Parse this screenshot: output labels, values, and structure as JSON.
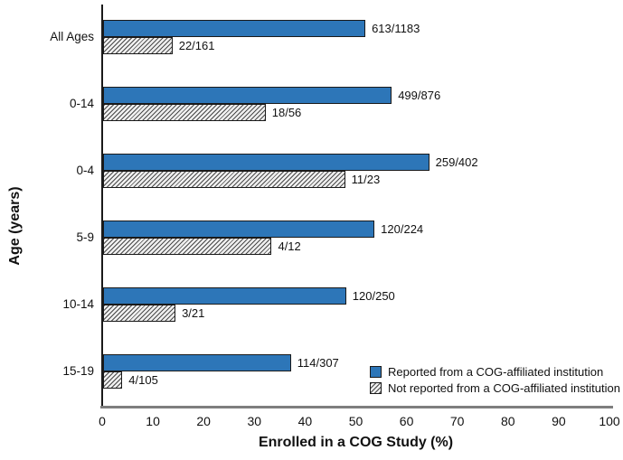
{
  "chart_data": {
    "type": "bar",
    "orientation": "horizontal",
    "title": "",
    "xlabel": "Enrolled in a COG Study (%)",
    "ylabel": "Age (years)",
    "xlim": [
      0,
      100
    ],
    "x_ticks": [
      0,
      10,
      20,
      30,
      40,
      50,
      60,
      70,
      80,
      90,
      100
    ],
    "grid": false,
    "legend_position": "inside-bottom-right",
    "categories": [
      "All Ages",
      "0-14",
      "0-4",
      "5-9",
      "10-14",
      "15-19"
    ],
    "series": [
      {
        "name": "Reported from a COG-affiliated institution",
        "style": "solid",
        "labels": [
          "613/1183",
          "499/876",
          "259/402",
          "120/224",
          "120/250",
          "114/307"
        ],
        "values": [
          51.8,
          57.0,
          64.4,
          53.6,
          48.0,
          37.1
        ]
      },
      {
        "name": "Not reported from a COG-affiliated institution",
        "style": "hatched",
        "labels": [
          "22/161",
          "18/56",
          "11/23",
          "4/12",
          "3/21",
          "4/105"
        ],
        "values": [
          13.7,
          32.1,
          47.8,
          33.3,
          14.3,
          3.8
        ]
      }
    ],
    "colors": {
      "bar_fill": "#2d76b8",
      "bar_border": "#1a1a1a",
      "hatch_line": "#4a4a4a",
      "hatch_bg": "#efefef",
      "y_axis_line": "#1a1a1a",
      "x_axis_line": "#7e7e7e",
      "text": "#111111"
    }
  }
}
